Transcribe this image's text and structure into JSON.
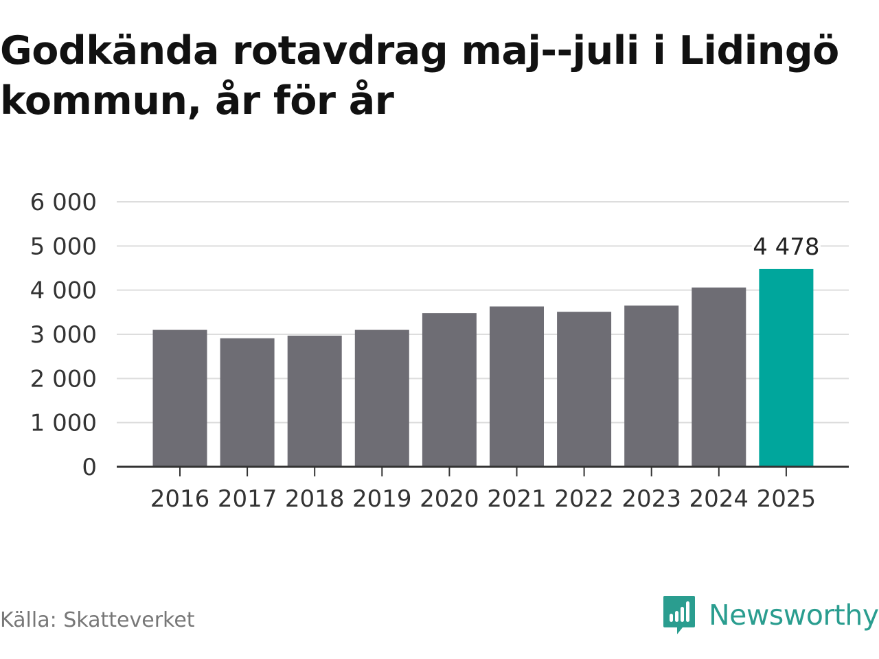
{
  "chart_data": {
    "type": "bar",
    "title": "Godkända rotavdrag maj--juli i Lidingö kommun, år för år",
    "xlabel": "",
    "ylabel": "",
    "categories": [
      "2016",
      "2017",
      "2018",
      "2019",
      "2020",
      "2021",
      "2022",
      "2023",
      "2024",
      "2025"
    ],
    "values": [
      3100,
      2910,
      2970,
      3100,
      3480,
      3630,
      3510,
      3650,
      4060,
      4478
    ],
    "ylim": [
      0,
      6000
    ],
    "yticks": [
      0,
      1000,
      2000,
      3000,
      4000,
      5000,
      6000
    ],
    "ytick_labels": [
      "0",
      "1 000",
      "2 000",
      "3 000",
      "4 000",
      "5 000",
      "6 000"
    ],
    "data_labels": [
      {
        "index": 9,
        "text": "4 478"
      }
    ],
    "grid": true,
    "colors": {
      "bar": "#6e6d74",
      "highlight": "#00a69c",
      "grid": "#dddddd",
      "axis": "#333333"
    },
    "highlight_index": 9
  },
  "footer": {
    "source": "Källa: Skatteverket",
    "brand": "Newsworthy",
    "brand_icon": "newsworthy-logo-icon"
  }
}
